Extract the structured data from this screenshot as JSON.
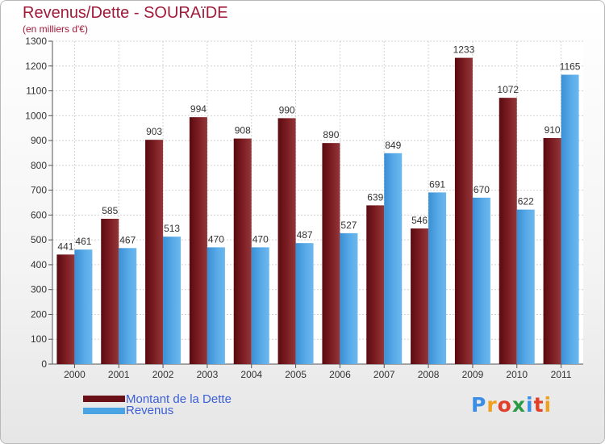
{
  "title": "Revenus/Dette - SOURAïDE",
  "subtitle": "(en milliers d'€)",
  "legend": [
    {
      "label": "Montant de la Dette",
      "color": "#6b1016"
    },
    {
      "label": "Revenus",
      "color": "#4aa3e3"
    }
  ],
  "logo": {
    "letters": [
      "P",
      "r",
      "o",
      "x",
      "i",
      "t",
      "i"
    ],
    "colors": [
      "#3a8ee6",
      "#f0a020",
      "#e0402a",
      "#2b9a44",
      "#3a8ee6",
      "#e0402a",
      "#f0a020"
    ]
  },
  "chart_data": {
    "type": "bar",
    "categories": [
      "2000",
      "2001",
      "2002",
      "2003",
      "2004",
      "2005",
      "2006",
      "2007",
      "2008",
      "2009",
      "2010",
      "2011"
    ],
    "series": [
      {
        "name": "Montant de la Dette",
        "color": "#7a1a1e",
        "values": [
          441,
          585,
          903,
          994,
          908,
          990,
          890,
          639,
          546,
          1233,
          1072,
          910
        ]
      },
      {
        "name": "Revenus",
        "color": "#4aa3e3",
        "values": [
          461,
          467,
          513,
          470,
          470,
          487,
          527,
          849,
          691,
          670,
          622,
          1165
        ]
      }
    ],
    "ylim": [
      0,
      1300
    ],
    "yticks": [
      0,
      100,
      200,
      300,
      400,
      500,
      600,
      700,
      800,
      900,
      1000,
      1100,
      1200,
      1300
    ],
    "grid": true
  }
}
